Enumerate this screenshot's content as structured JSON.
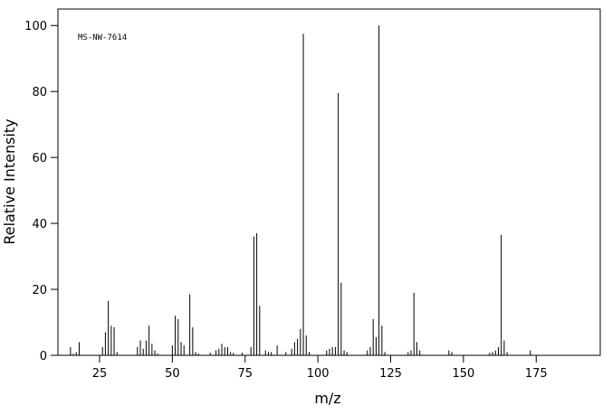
{
  "chart_data": {
    "type": "stick",
    "annotation": "MS-NW-7614",
    "xlabel": "m/z",
    "ylabel": "Relative Intensity",
    "x": [
      15,
      16,
      17,
      18,
      26,
      27,
      28,
      29,
      30,
      31,
      38,
      39,
      40,
      41,
      42,
      43,
      44,
      45,
      50,
      51,
      52,
      53,
      54,
      56,
      57,
      58,
      59,
      63,
      65,
      66,
      67,
      68,
      69,
      70,
      71,
      74,
      77,
      78,
      79,
      80,
      82,
      83,
      84,
      86,
      89,
      91,
      92,
      93,
      94,
      95,
      96,
      97,
      103,
      104,
      105,
      106,
      107,
      108,
      109,
      110,
      117,
      118,
      119,
      120,
      121,
      122,
      123,
      131,
      132,
      133,
      134,
      135,
      145,
      146,
      159,
      160,
      161,
      162,
      163,
      164,
      165,
      173
    ],
    "values": [
      2.5,
      0.5,
      1,
      4,
      2.5,
      7,
      16.5,
      9,
      8.5,
      1,
      2.5,
      4.5,
      2,
      4.5,
      9,
      3.5,
      1.5,
      0.5,
      3,
      12,
      11,
      4,
      3,
      18.5,
      8.5,
      1,
      0.5,
      0.8,
      1.5,
      2,
      3.5,
      2.5,
      2.5,
      1,
      0.8,
      0.8,
      2.5,
      36,
      37,
      15,
      1.5,
      1,
      1,
      3,
      1,
      2,
      4,
      5,
      8,
      97.5,
      6,
      1,
      1.5,
      2,
      2.5,
      2.5,
      79.5,
      22,
      1.5,
      1,
      1.5,
      2.5,
      11,
      5.5,
      100,
      9,
      1,
      1,
      1.5,
      19,
      4,
      1.5,
      1.5,
      1,
      0.8,
      1,
      1.5,
      2.5,
      36.5,
      4.5,
      1,
      1.5
    ],
    "color": "#000000",
    "xlim": [
      10.7,
      197
    ],
    "ylim": [
      0,
      105
    ],
    "xticks": [
      25,
      50,
      75,
      100,
      125,
      150,
      175
    ],
    "yticks": [
      0,
      20,
      40,
      60,
      80,
      100
    ]
  }
}
